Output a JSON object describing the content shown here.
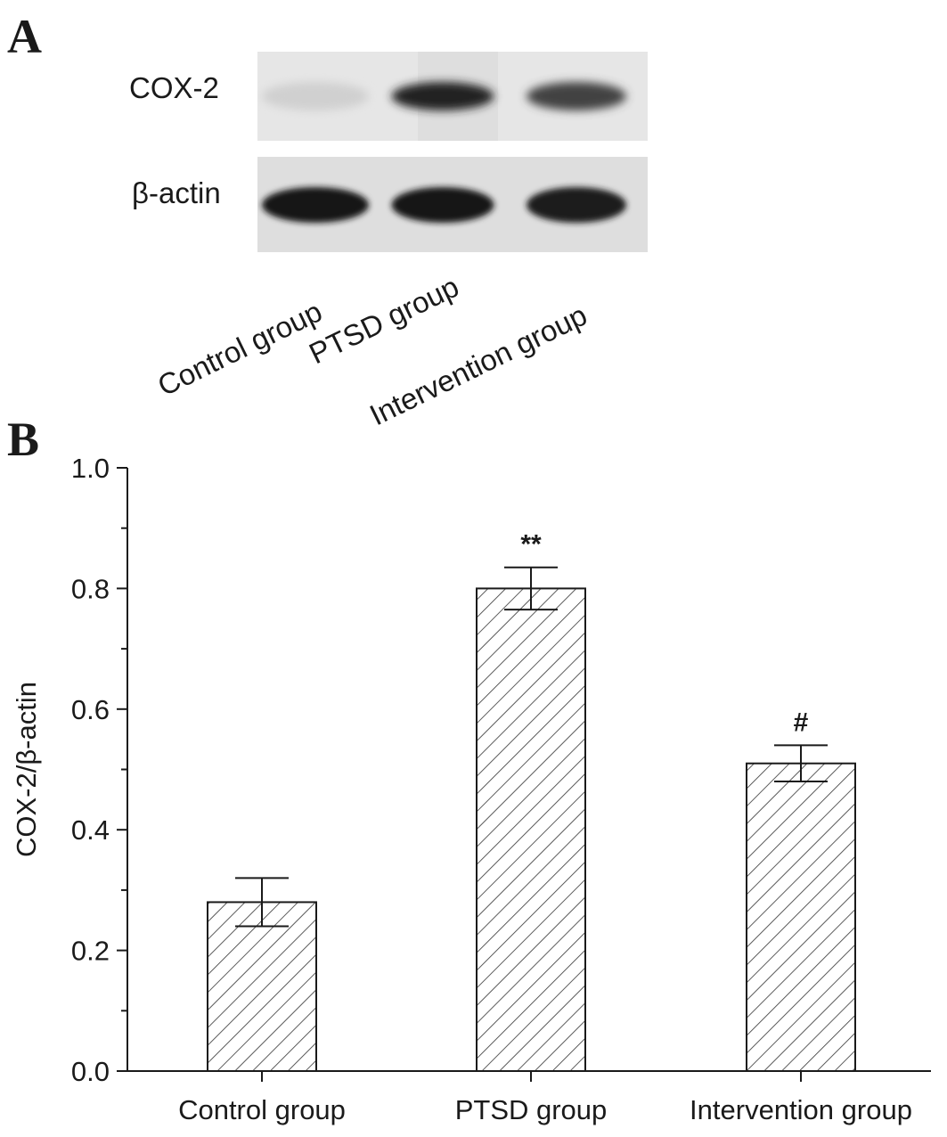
{
  "panel_a": {
    "letter": "A",
    "rows": [
      {
        "label": "COX-2"
      },
      {
        "label": "β-actin"
      }
    ],
    "lanes": [
      "Control group",
      "PTSD group",
      "Intervention group"
    ],
    "band_intensity": {
      "COX-2": [
        0.12,
        0.9,
        0.75
      ],
      "β-actin": [
        0.95,
        0.95,
        0.92
      ]
    }
  },
  "panel_b": {
    "letter": "B"
  },
  "chart_data": {
    "type": "bar",
    "categories": [
      "Control group",
      "PTSD group",
      "Intervention group"
    ],
    "values": [
      0.28,
      0.8,
      0.51
    ],
    "errors": [
      0.04,
      0.035,
      0.03
    ],
    "annotations": [
      "",
      "**",
      "#"
    ],
    "ylabel": "COX-2/β-actin",
    "xlabel": "",
    "ylim": [
      0,
      1.0
    ],
    "yticks": [
      0.0,
      0.2,
      0.4,
      0.6,
      0.8,
      1.0
    ],
    "ytick_labels": [
      "0.0",
      "0.2",
      "0.4",
      "0.6",
      "0.8",
      "1.0"
    ],
    "fill": "diagonal-hatch",
    "colors": {
      "stroke": "#1a1a1a",
      "fill": "#ffffff"
    },
    "grid": false
  }
}
